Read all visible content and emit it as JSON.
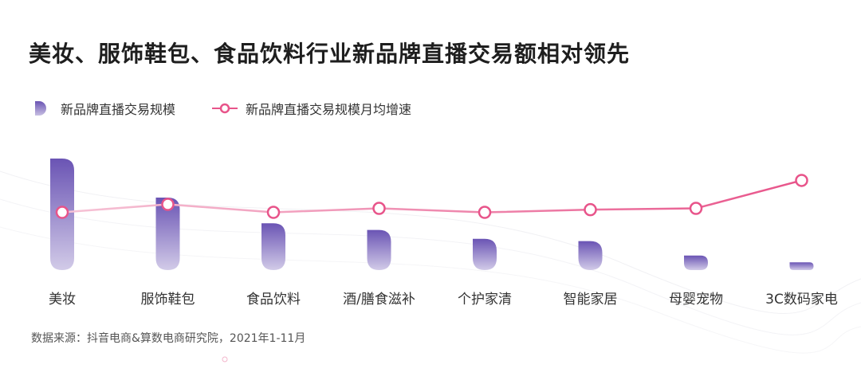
{
  "title": "美妆、服饰鞋包、食品饮料行业新品牌直播交易额相对领先",
  "legend": {
    "bar_label": "新品牌直播交易规模",
    "line_label": "新品牌直播交易规模月均增速"
  },
  "source": "数据来源：抖音电商&算数电商研究院，2021年1-11月",
  "colors": {
    "bar_top": "#6a54b4",
    "bar_bottom": "#d2cbe8",
    "line": "#e8548a",
    "line_light": "#f4b8cf"
  },
  "chart_data": {
    "type": "bar",
    "categories": [
      "美妆",
      "服饰鞋包",
      "食品饮料",
      "酒/膳食滋补",
      "个护家清",
      "智能家居",
      "母婴宠物",
      "3C数码家电"
    ],
    "series": [
      {
        "name": "新品牌直播交易规模",
        "kind": "bar",
        "values": [
          100,
          65,
          42,
          36,
          28,
          26,
          13,
          7
        ]
      },
      {
        "name": "新品牌直播交易规模月均增速",
        "kind": "line",
        "values": [
          44,
          50,
          44,
          47,
          44,
          46,
          47,
          68
        ]
      }
    ],
    "xlabel": "",
    "ylabel": "",
    "ylim": [
      0,
      100
    ],
    "grid": false,
    "legend_position": "top-left"
  }
}
